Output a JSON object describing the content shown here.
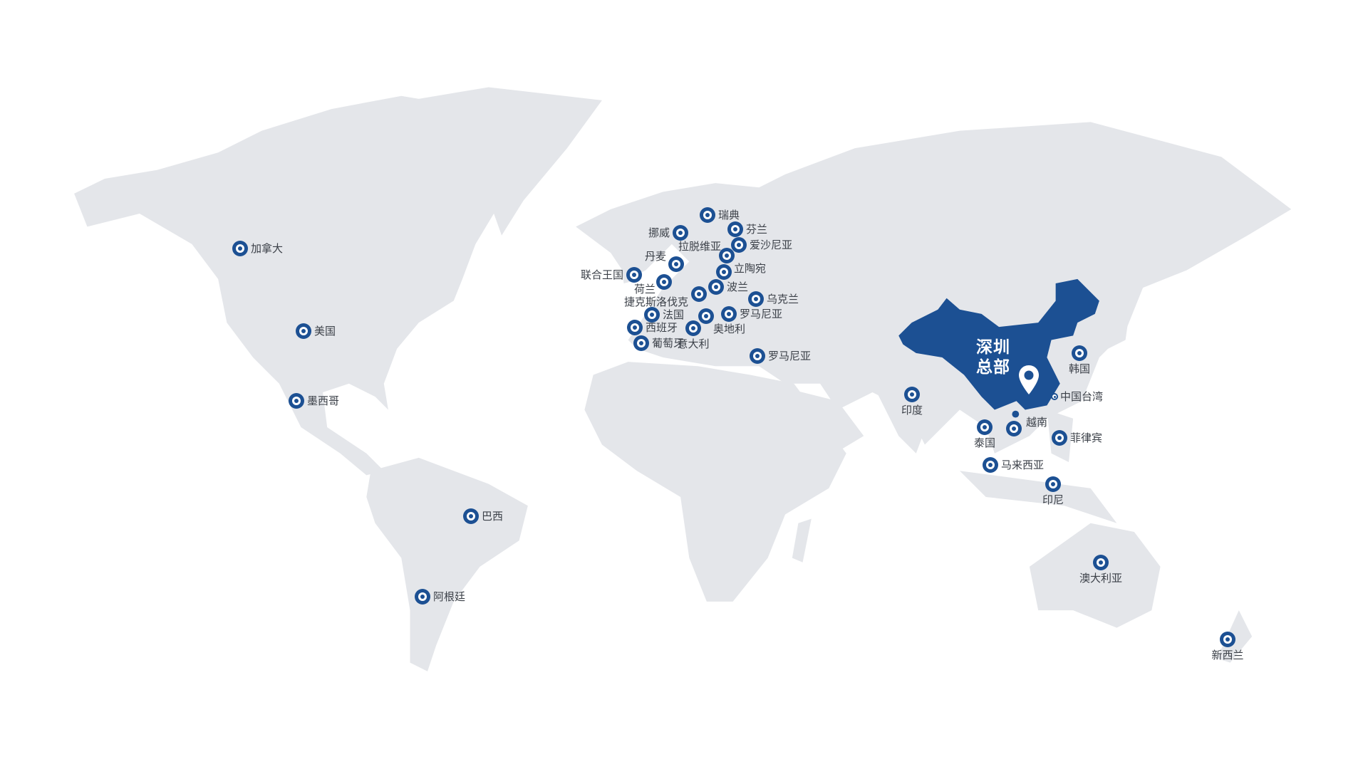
{
  "map": {
    "colors": {
      "land": "#e4e6ea",
      "highlight": "#1c5093",
      "marker": "#1c5093",
      "label": "#3b4048"
    },
    "headquarters": {
      "line1": "深圳",
      "line2": "总部",
      "icon": "map-pin-icon"
    },
    "locations": [
      {
        "label": "加拿大"
      },
      {
        "label": "美国"
      },
      {
        "label": "墨西哥"
      },
      {
        "label": "巴西"
      },
      {
        "label": "阿根廷"
      },
      {
        "label": "瑞典"
      },
      {
        "label": "挪威"
      },
      {
        "label": "芬兰"
      },
      {
        "label": "爱沙尼亚"
      },
      {
        "label": "拉脱维亚"
      },
      {
        "label": "立陶宛"
      },
      {
        "label": ""
      },
      {
        "label": "波兰"
      },
      {
        "label": "丹麦"
      },
      {
        "label": "联合王国"
      },
      {
        "label": "荷兰"
      },
      {
        "label": "捷克斯洛伐克"
      },
      {
        "label": "乌克兰"
      },
      {
        "label": "法国"
      },
      {
        "label": "罗马尼亚"
      },
      {
        "label": "奥地利"
      },
      {
        "label": "西班牙"
      },
      {
        "label": "意大利"
      },
      {
        "label": "葡萄牙"
      },
      {
        "label": "罗马尼亚"
      },
      {
        "label": "印度"
      },
      {
        "label": "韩国"
      },
      {
        "label": "中国台湾"
      },
      {
        "label": "越南"
      },
      {
        "label": "泰国"
      },
      {
        "label": "菲律宾"
      },
      {
        "label": "马来西亚"
      },
      {
        "label": "印尼"
      },
      {
        "label": "澳大利亚"
      },
      {
        "label": "新西兰"
      }
    ]
  }
}
